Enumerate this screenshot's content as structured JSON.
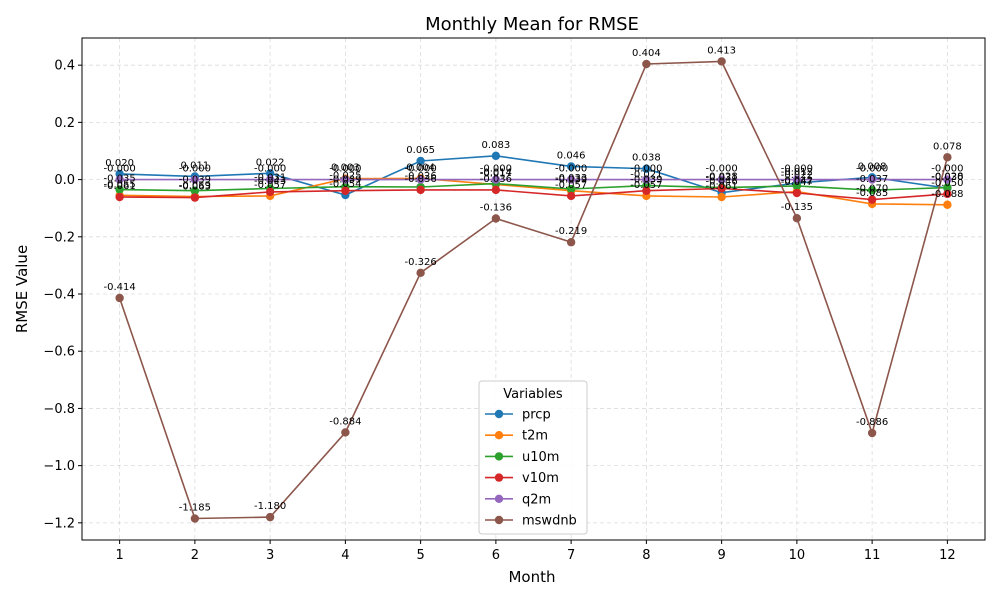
{
  "chart_data": {
    "type": "line",
    "title": "Monthly Mean for RMSE",
    "xlabel": "Month",
    "ylabel": "RMSE Value",
    "x": [
      1,
      2,
      3,
      4,
      5,
      6,
      7,
      8,
      9,
      10,
      11,
      12
    ],
    "xticks": [
      "1",
      "2",
      "3",
      "4",
      "5",
      "6",
      "7",
      "8",
      "9",
      "10",
      "11",
      "12"
    ],
    "xlim": [
      0.5,
      12.5
    ],
    "ylim": [
      -1.26,
      0.495
    ],
    "yticks": [
      0.4,
      0.2,
      0.0,
      -0.2,
      -0.4,
      -0.6,
      -0.8,
      -1.0,
      -1.2
    ],
    "ytick_labels": [
      "0.4",
      "0.2",
      "0.0",
      "−0.2",
      "−0.4",
      "−0.6",
      "−0.8",
      "−1.0",
      "−1.2"
    ],
    "grid": true,
    "legend": {
      "title": "Variables",
      "placement": "bottom-center"
    },
    "series": [
      {
        "name": "prcp",
        "color": "#1f77b4",
        "values": [
          0.02,
          0.011,
          0.022,
          -0.054,
          0.065,
          0.083,
          0.046,
          0.038,
          -0.046,
          -0.012,
          0.008,
          -0.03
        ],
        "labels": [
          "0.020",
          "0.011",
          "0.022",
          "-0.054",
          "0.065",
          "0.083",
          "0.046",
          "0.038",
          "-0.046",
          "-0.012",
          "0.008",
          "-0.030"
        ]
      },
      {
        "name": "t2m",
        "color": "#ff7f0e",
        "values": [
          -0.055,
          -0.059,
          -0.057,
          0.003,
          0.004,
          -0.017,
          -0.039,
          -0.057,
          -0.061,
          -0.042,
          -0.085,
          -0.088
        ],
        "labels": [
          "-0.055",
          "-0.059",
          "-0.057",
          "0.003",
          "0.004",
          "-0.017",
          "-0.039",
          "-0.057",
          "-0.061",
          "-0.042",
          "-0.085",
          "-0.088"
        ]
      },
      {
        "name": "u10m",
        "color": "#2ca02c",
        "values": [
          -0.035,
          -0.039,
          -0.031,
          -0.025,
          -0.026,
          -0.014,
          -0.033,
          -0.021,
          -0.028,
          -0.022,
          -0.037,
          -0.028
        ],
        "labels": [
          "-0.035",
          "-0.039",
          "-0.031",
          "-0.025",
          "-0.026",
          "-0.014",
          "-0.033",
          "-0.021",
          "-0.028",
          "-0.022",
          "-0.037",
          "-0.028"
        ]
      },
      {
        "name": "v10m",
        "color": "#d62728",
        "values": [
          -0.061,
          -0.063,
          -0.043,
          -0.039,
          -0.036,
          -0.036,
          -0.057,
          -0.039,
          -0.031,
          -0.047,
          -0.07,
          -0.05
        ],
        "labels": [
          "-0.061",
          "-0.063",
          "-0.043",
          "-0.039",
          "-0.036",
          "-0.036",
          "-0.057",
          "-0.039",
          "-0.031",
          "-0.047",
          "-0.070",
          "-0.050"
        ]
      },
      {
        "name": "q2m",
        "color": "#9467bd",
        "values": [
          0.0,
          0.0,
          0.0,
          0.0,
          0.0,
          0.0,
          0.0,
          0.0,
          0.0,
          0.0,
          0.0,
          0.0
        ],
        "labels": [
          "-0.000",
          "-0.000",
          "-0.000",
          "-0.000",
          "-0.000",
          "-0.000",
          "-0.000",
          "-0.000",
          "-0.000",
          "-0.000",
          "-0.000",
          "-0.000"
        ]
      },
      {
        "name": "mswdnb",
        "color": "#8c564b",
        "values": [
          -0.414,
          -1.185,
          -1.18,
          -0.884,
          -0.326,
          -0.136,
          -0.219,
          0.404,
          0.413,
          -0.135,
          -0.886,
          0.078
        ],
        "labels": [
          "-0.414",
          "-1.185",
          "-1.180",
          "-0.884",
          "-0.326",
          "-0.136",
          "-0.219",
          "0.404",
          "0.413",
          "-0.135",
          "-0.886",
          "0.078"
        ]
      }
    ]
  }
}
